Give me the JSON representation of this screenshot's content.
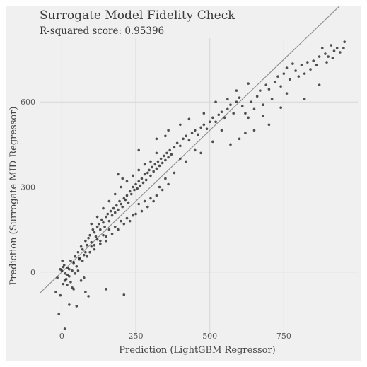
{
  "chart_data": {
    "type": "scatter",
    "title": "Surrogate Model Fidelity Check",
    "subtitle": "R-squared score: 0.95396",
    "xlabel": "Prediction (LightGBM Regressor)",
    "ylabel": "Prediction (Surrogate MID Regressor)",
    "xlim": [
      -75,
      1000
    ],
    "ylim": [
      -225,
      825
    ],
    "xticks": [
      0,
      250,
      500,
      750
    ],
    "xtick_labels": [
      "0",
      "250",
      "500",
      "750"
    ],
    "yticks": [
      0,
      300,
      600
    ],
    "ytick_labels": [
      "0",
      "300",
      "600"
    ],
    "grid": true,
    "reference_line": {
      "from": [
        -75,
        -75
      ],
      "to": [
        1000,
        1000
      ]
    },
    "point_color": "#1a1a1a",
    "line_color": "#8c8c8c",
    "series": [
      {
        "points": [
          [
            -10,
            -148
          ],
          [
            10,
            -200
          ],
          [
            25,
            -115
          ],
          [
            50,
            -120
          ],
          [
            -5,
            -82
          ],
          [
            35,
            -55
          ],
          [
            80,
            -70
          ],
          [
            90,
            -85
          ],
          [
            -20,
            -70
          ],
          [
            150,
            -60
          ],
          [
            210,
            -80
          ],
          [
            5,
            -42
          ],
          [
            10,
            -30
          ],
          [
            20,
            -10
          ],
          [
            0,
            5
          ],
          [
            5,
            18
          ],
          [
            12,
            -5
          ],
          [
            25,
            10
          ],
          [
            30,
            40
          ],
          [
            8,
            25
          ],
          [
            40,
            30
          ],
          [
            45,
            55
          ],
          [
            55,
            70
          ],
          [
            60,
            45
          ],
          [
            65,
            90
          ],
          [
            70,
            80
          ],
          [
            75,
            60
          ],
          [
            80,
            110
          ],
          [
            85,
            95
          ],
          [
            90,
            120
          ],
          [
            95,
            130
          ],
          [
            100,
            105
          ],
          [
            105,
            150
          ],
          [
            110,
            140
          ],
          [
            115,
            125
          ],
          [
            120,
            160
          ],
          [
            125,
            170
          ],
          [
            130,
            150
          ],
          [
            135,
            185
          ],
          [
            140,
            175
          ],
          [
            145,
            160
          ],
          [
            150,
            195
          ],
          [
            155,
            205
          ],
          [
            160,
            180
          ],
          [
            165,
            215
          ],
          [
            170,
            200
          ],
          [
            175,
            225
          ],
          [
            180,
            210
          ],
          [
            185,
            235
          ],
          [
            190,
            220
          ],
          [
            195,
            250
          ],
          [
            200,
            240
          ],
          [
            205,
            230
          ],
          [
            210,
            260
          ],
          [
            215,
            255
          ],
          [
            220,
            270
          ],
          [
            225,
            245
          ],
          [
            230,
            285
          ],
          [
            235,
            275
          ],
          [
            240,
            300
          ],
          [
            245,
            290
          ],
          [
            250,
            310
          ],
          [
            255,
            295
          ],
          [
            260,
            320
          ],
          [
            265,
            305
          ],
          [
            270,
            330
          ],
          [
            275,
            315
          ],
          [
            280,
            345
          ],
          [
            285,
            325
          ],
          [
            290,
            350
          ],
          [
            295,
            360
          ],
          [
            300,
            340
          ],
          [
            305,
            370
          ],
          [
            310,
            355
          ],
          [
            315,
            380
          ],
          [
            320,
            365
          ],
          [
            325,
            390
          ],
          [
            330,
            375
          ],
          [
            335,
            400
          ],
          [
            340,
            385
          ],
          [
            345,
            410
          ],
          [
            350,
            395
          ],
          [
            355,
            420
          ],
          [
            360,
            405
          ],
          [
            365,
            430
          ],
          [
            370,
            415
          ],
          [
            380,
            440
          ],
          [
            390,
            455
          ],
          [
            400,
            445
          ],
          [
            410,
            470
          ],
          [
            420,
            480
          ],
          [
            430,
            465
          ],
          [
            440,
            490
          ],
          [
            450,
            500
          ],
          [
            460,
            485
          ],
          [
            470,
            510
          ],
          [
            480,
            520
          ],
          [
            490,
            505
          ],
          [
            500,
            530
          ],
          [
            510,
            545
          ],
          [
            520,
            530
          ],
          [
            530,
            555
          ],
          [
            540,
            565
          ],
          [
            550,
            545
          ],
          [
            560,
            575
          ],
          [
            570,
            590
          ],
          [
            580,
            560
          ],
          [
            590,
            600
          ],
          [
            600,
            615
          ],
          [
            610,
            585
          ],
          [
            620,
            560
          ],
          [
            630,
            545
          ],
          [
            640,
            600
          ],
          [
            650,
            575
          ],
          [
            660,
            620
          ],
          [
            670,
            640
          ],
          [
            680,
            590
          ],
          [
            690,
            660
          ],
          [
            700,
            645
          ],
          [
            710,
            610
          ],
          [
            720,
            670
          ],
          [
            730,
            690
          ],
          [
            740,
            655
          ],
          [
            750,
            700
          ],
          [
            760,
            720
          ],
          [
            770,
            680
          ],
          [
            780,
            735
          ],
          [
            790,
            710
          ],
          [
            800,
            690
          ],
          [
            810,
            730
          ],
          [
            820,
            700
          ],
          [
            830,
            740
          ],
          [
            840,
            715
          ],
          [
            850,
            745
          ],
          [
            860,
            730
          ],
          [
            870,
            760
          ],
          [
            880,
            790
          ],
          [
            890,
            770
          ],
          [
            900,
            760
          ],
          [
            910,
            800
          ],
          [
            920,
            780
          ],
          [
            930,
            790
          ],
          [
            940,
            775
          ],
          [
            955,
            812
          ],
          [
            952,
            790
          ],
          [
            915,
            755
          ],
          [
            895,
            740
          ],
          [
            650,
            500
          ],
          [
            620,
            490
          ],
          [
            570,
            450
          ],
          [
            510,
            460
          ],
          [
            450,
            430
          ],
          [
            400,
            400
          ],
          [
            350,
            330
          ],
          [
            330,
            300
          ],
          [
            300,
            260
          ],
          [
            280,
            250
          ],
          [
            260,
            240
          ],
          [
            240,
            200
          ],
          [
            220,
            190
          ],
          [
            200,
            180
          ],
          [
            180,
            160
          ],
          [
            160,
            150
          ],
          [
            140,
            130
          ],
          [
            120,
            115
          ],
          [
            100,
            90
          ],
          [
            80,
            70
          ],
          [
            60,
            50
          ],
          [
            40,
            35
          ],
          [
            20,
            15
          ],
          [
            150,
            110
          ],
          [
            130,
            100
          ],
          [
            110,
            80
          ],
          [
            95,
            70
          ],
          [
            85,
            55
          ],
          [
            70,
            40
          ],
          [
            50,
            20
          ],
          [
            35,
            5
          ],
          [
            25,
            -15
          ],
          [
            15,
            -25
          ],
          [
            300,
            390
          ],
          [
            320,
            420
          ],
          [
            280,
            380
          ],
          [
            260,
            360
          ],
          [
            240,
            340
          ],
          [
            220,
            320
          ],
          [
            200,
            300
          ],
          [
            180,
            275
          ],
          [
            160,
            250
          ],
          [
            140,
            225
          ],
          [
            120,
            195
          ],
          [
            100,
            170
          ],
          [
            350,
            480
          ],
          [
            260,
            430
          ],
          [
            320,
            470
          ],
          [
            190,
            345
          ],
          [
            205,
            330
          ],
          [
            360,
            500
          ],
          [
            400,
            520
          ],
          [
            430,
            540
          ],
          [
            560,
            610
          ],
          [
            520,
            600
          ],
          [
            480,
            560
          ],
          [
            590,
            640
          ],
          [
            630,
            665
          ],
          [
            700,
            520
          ],
          [
            760,
            630
          ],
          [
            820,
            610
          ],
          [
            870,
            660
          ],
          [
            740,
            580
          ],
          [
            680,
            550
          ],
          [
            600,
            470
          ],
          [
            540,
            500
          ],
          [
            470,
            420
          ],
          [
            420,
            390
          ],
          [
            380,
            350
          ],
          [
            360,
            310
          ],
          [
            340,
            290
          ],
          [
            320,
            270
          ],
          [
            310,
            250
          ],
          [
            290,
            230
          ],
          [
            270,
            215
          ],
          [
            250,
            205
          ],
          [
            230,
            180
          ],
          [
            210,
            170
          ],
          [
            190,
            150
          ],
          [
            170,
            135
          ],
          [
            150,
            125
          ],
          [
            130,
            110
          ],
          [
            110,
            95
          ],
          [
            55,
            5
          ],
          [
            45,
            -5
          ],
          [
            65,
            -30
          ],
          [
            75,
            -20
          ],
          [
            30,
            -35
          ],
          [
            18,
            -45
          ],
          [
            40,
            -60
          ],
          [
            -15,
            -20
          ],
          [
            -5,
            10
          ],
          [
            2,
            40
          ]
        ]
      }
    ]
  }
}
